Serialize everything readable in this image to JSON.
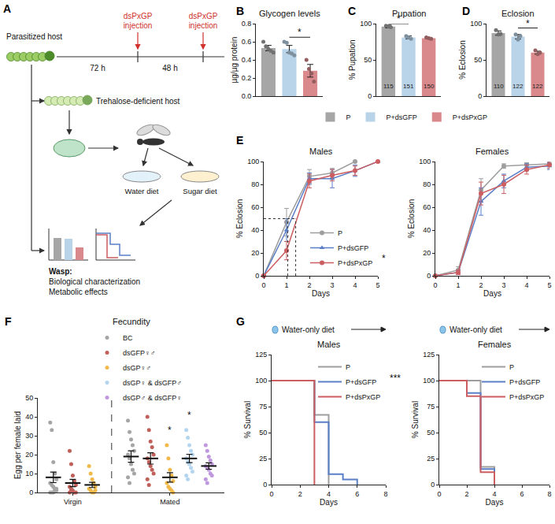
{
  "diagram": {
    "panel": "A",
    "host": "Parasitized host",
    "interval1": "72 h",
    "interval2": "48 h",
    "injection": "dsPxGP injection",
    "deficient_host": "Trehalose-deficient host",
    "diets": [
      "Water diet",
      "Sugar diet"
    ],
    "readout": [
      "Wasp:",
      "Biological characterization",
      "Metabolic effects"
    ]
  },
  "chart_data": [
    {
      "panel": "B",
      "type": "bar",
      "title": "Glycogen levels",
      "y_label": "µg/µg protein",
      "categories": [
        "P",
        "P+dsGFP",
        "P+dsPxGP"
      ],
      "values": [
        0.53,
        0.52,
        0.28
      ],
      "errors": [
        0.03,
        0.04,
        0.07
      ],
      "points": [
        [
          0.6,
          0.55,
          0.52,
          0.5,
          0.48
        ],
        [
          0.6,
          0.59,
          0.48,
          0.47,
          0.45
        ],
        [
          0.4,
          0.3,
          0.25,
          0.16
        ]
      ],
      "colors": [
        "#a6a6a6",
        "#b9d4e8",
        "#d9898c"
      ],
      "ylim": [
        0,
        0.8
      ],
      "yticks": [
        {
          "value": 0,
          "label": "0.0"
        },
        0.2,
        0.4,
        0.6,
        0.8
      ],
      "tick_labels": "y",
      "legend": "bottom",
      "significance": [
        {
          "between": [
            1,
            2
          ],
          "y": 0.65,
          "label": "*"
        }
      ]
    },
    {
      "panel": "C",
      "type": "bar",
      "title": "Pupation",
      "y_label": "% Pupation",
      "categories": [
        "P",
        "P+dsGFP",
        "P+dsPxGP"
      ],
      "values": [
        96,
        81,
        80
      ],
      "errors": [
        2,
        2,
        1
      ],
      "points": [
        [
          97,
          96,
          95
        ],
        [
          83,
          81,
          79
        ],
        [
          81,
          80,
          79
        ]
      ],
      "n": [
        115,
        151,
        150
      ],
      "colors": [
        "#a6a6a6",
        "#b9d4e8",
        "#d9898c"
      ],
      "ylim": [
        0,
        100
      ],
      "yticks": [
        0,
        50,
        100
      ],
      "tick_labels": "y",
      "significance": [
        {
          "between": [
            0,
            1
          ],
          "y": 100,
          "label": "*"
        }
      ]
    },
    {
      "panel": "D",
      "type": "bar",
      "title": "Eclosion",
      "y_label": "% Eclosion",
      "categories": [
        "P",
        "P+dsGFP",
        "P+dsPxGP"
      ],
      "values": [
        87,
        82,
        60
      ],
      "errors": [
        3,
        3,
        2
      ],
      "points": [
        [
          91,
          85,
          86
        ],
        [
          85,
          78,
          83
        ],
        [
          63,
          58,
          60
        ]
      ],
      "n": [
        110,
        122,
        122
      ],
      "colors": [
        "#a6a6a6",
        "#b9d4e8",
        "#d9898c"
      ],
      "ylim": [
        0,
        100
      ],
      "yticks": [
        0,
        50,
        100
      ],
      "tick_labels": "y",
      "significance": [
        {
          "between": [
            1,
            2
          ],
          "y": 94,
          "label": "*"
        }
      ]
    },
    {
      "panel": "E",
      "type": "line",
      "title": "Males",
      "x_label": "Days",
      "y_label": "% Eclosion",
      "x": [
        0,
        1,
        2,
        3,
        4,
        5
      ],
      "series": [
        {
          "name": "P",
          "color": "#9e9e9e",
          "marker": "circle",
          "values": [
            0,
            47,
            87,
            90,
            100,
            null
          ],
          "errors": [
            0,
            12,
            6,
            4,
            0,
            null
          ]
        },
        {
          "name": "P+dsGFP",
          "color": "#5b7fc7",
          "marker": "triangle-up",
          "values": [
            0,
            40,
            85,
            85,
            92,
            100
          ],
          "errors": [
            0,
            10,
            5,
            8,
            5,
            0
          ]
        },
        {
          "name": "P+dsPxGP",
          "color": "#cc5d61",
          "marker": "circle",
          "values": [
            0,
            22,
            83,
            88,
            92,
            100
          ],
          "errors": [
            0,
            8,
            6,
            5,
            4,
            0
          ]
        }
      ],
      "xlim": [
        0,
        5
      ],
      "xticks": [
        0,
        1,
        2,
        3,
        4,
        5
      ],
      "ylim": [
        0,
        100
      ],
      "yticks": [
        0,
        20,
        40,
        60,
        80,
        100
      ],
      "legend": "lower right",
      "reference_lines": {
        "y": 50,
        "x": [
          1.05,
          1.4
        ]
      },
      "significance": [
        {
          "label": "*"
        }
      ]
    },
    {
      "type": "line",
      "title": "Females",
      "x_label": "Days",
      "y_label": "% Eclosion",
      "x": [
        0,
        1,
        2,
        3,
        4,
        5
      ],
      "series": [
        {
          "name": "P",
          "color": "#9e9e9e",
          "marker": "circle",
          "values": [
            0,
            5,
            75,
            96,
            97,
            98
          ],
          "errors": [
            0,
            3,
            10,
            2,
            2,
            2
          ]
        },
        {
          "name": "P+dsGFP",
          "color": "#5b7fc7",
          "marker": "triangle-up",
          "values": [
            0,
            3,
            65,
            83,
            95,
            96
          ],
          "errors": [
            0,
            2,
            12,
            6,
            3,
            3
          ]
        },
        {
          "name": "P+dsPxGP",
          "color": "#cc5d61",
          "marker": "circle",
          "values": [
            0,
            3,
            72,
            80,
            93,
            97
          ],
          "errors": [
            0,
            2,
            10,
            8,
            4,
            3
          ]
        }
      ],
      "xlim": [
        0,
        5
      ],
      "xticks": [
        0,
        1,
        2,
        3,
        4,
        5
      ],
      "ylim": [
        0,
        100
      ],
      "yticks": [
        0,
        20,
        40,
        60,
        80,
        100
      ]
    },
    {
      "panel": "F",
      "type": "strip",
      "title": "Fecundity",
      "y_label": "Egg per female laid",
      "categories": [
        "Virgin",
        "Mated"
      ],
      "series": [
        {
          "name": "BC",
          "color": "#a5a5a5",
          "values": [
            [
              37,
              33,
              16,
              10,
              7,
              5,
              4,
              3,
              2,
              1,
              0,
              0,
              0,
              1,
              2
            ],
            [
              38,
              32,
              28,
              25,
              22,
              20,
              18,
              15,
              12,
              10,
              8,
              5
            ]
          ],
          "means": [
            8,
            19
          ],
          "sem": [
            2.8,
            3
          ]
        },
        {
          "name": "dsGFP♀♂",
          "color": "#c0605a",
          "values": [
            [
              22,
              15,
              9,
              6,
              4,
              3,
              2,
              1,
              0,
              0,
              0,
              1
            ],
            [
              40,
              33,
              27,
              24,
              20,
              18,
              16,
              14,
              12,
              10,
              7,
              4
            ]
          ],
          "means": [
            5,
            18
          ],
          "sem": [
            1.9,
            3
          ]
        },
        {
          "name": "dsGP♀♂",
          "color": "#f0b94a",
          "values": [
            [
              14,
              10,
              7,
              5,
              3,
              2,
              1,
              0,
              0,
              1
            ],
            [
              25,
              18,
              12,
              9,
              6,
              5,
              3,
              2,
              1,
              0
            ]
          ],
          "means": [
            4,
            8
          ],
          "sem": [
            1.4,
            2.5
          ]
        },
        {
          "name": "dsGP♀ & dsGFP♂",
          "color": "#b4d5ef",
          "values": [
            null,
            [
              33,
              29,
              25,
              22,
              20,
              18,
              16,
              15,
              13,
              11,
              9,
              7
            ]
          ],
          "means": [
            null,
            18
          ],
          "sem": [
            null,
            2.2
          ]
        },
        {
          "name": "dsGP♂ & dsGFP♀",
          "color": "#bf98de",
          "values": [
            null,
            [
              25,
              22,
              19,
              17,
              15,
              14,
              13,
              12,
              10,
              9,
              7,
              5
            ]
          ],
          "means": [
            null,
            14
          ],
          "sem": [
            null,
            1.7
          ]
        }
      ],
      "ylim": [
        0,
        50
      ],
      "yticks": [
        0,
        10,
        20,
        30,
        40,
        50
      ],
      "legend": "top",
      "significance": [
        {
          "category": 1,
          "series": 2,
          "y": 29,
          "label": "*"
        },
        {
          "category": 1,
          "series": 3,
          "y": 37,
          "label": "*"
        }
      ]
    },
    {
      "panel": "G",
      "type": "step",
      "header": "Water-only diet",
      "title": "Males",
      "x_label": "Days",
      "y_label": "% Survival",
      "series": [
        {
          "name": "P",
          "color": "#9e9e9e",
          "x": [
            0,
            3,
            4
          ],
          "values": [
            100,
            67,
            0
          ]
        },
        {
          "name": "P+dsGFP",
          "color": "#5b7fc7",
          "x": [
            0,
            3,
            4,
            5,
            6
          ],
          "values": [
            100,
            60,
            10,
            5,
            0
          ]
        },
        {
          "name": "P+dsPxGP",
          "color": "#cc5d61",
          "x": [
            0,
            3
          ],
          "values": [
            100,
            0
          ]
        }
      ],
      "xlim": [
        0,
        8
      ],
      "xticks": [
        0,
        2,
        4,
        6,
        8
      ],
      "ylim": [
        0,
        125
      ],
      "yticks": [
        0,
        25,
        50,
        75,
        100,
        125
      ],
      "legend": "upper right",
      "significance": [
        {
          "label": "***"
        }
      ]
    },
    {
      "type": "step",
      "header": "Water-only diet",
      "title": "Females",
      "x_label": "Days",
      "y_label": "% Survival",
      "series": [
        {
          "name": "P",
          "color": "#9e9e9e",
          "x": [
            0,
            3,
            4
          ],
          "values": [
            100,
            17,
            0
          ]
        },
        {
          "name": "P+dsGFP",
          "color": "#5b7fc7",
          "x": [
            0,
            2,
            3,
            4
          ],
          "values": [
            100,
            88,
            15,
            0
          ]
        },
        {
          "name": "P+dsPxGP",
          "color": "#cc5d61",
          "x": [
            0,
            2,
            3,
            4
          ],
          "values": [
            100,
            85,
            12,
            0
          ]
        }
      ],
      "xlim": [
        0,
        8
      ],
      "xticks": [
        0,
        2,
        4,
        6,
        8
      ],
      "ylim": [
        0,
        125
      ],
      "yticks": [
        0,
        25,
        50,
        75,
        100,
        125
      ],
      "legend": "upper right"
    }
  ]
}
